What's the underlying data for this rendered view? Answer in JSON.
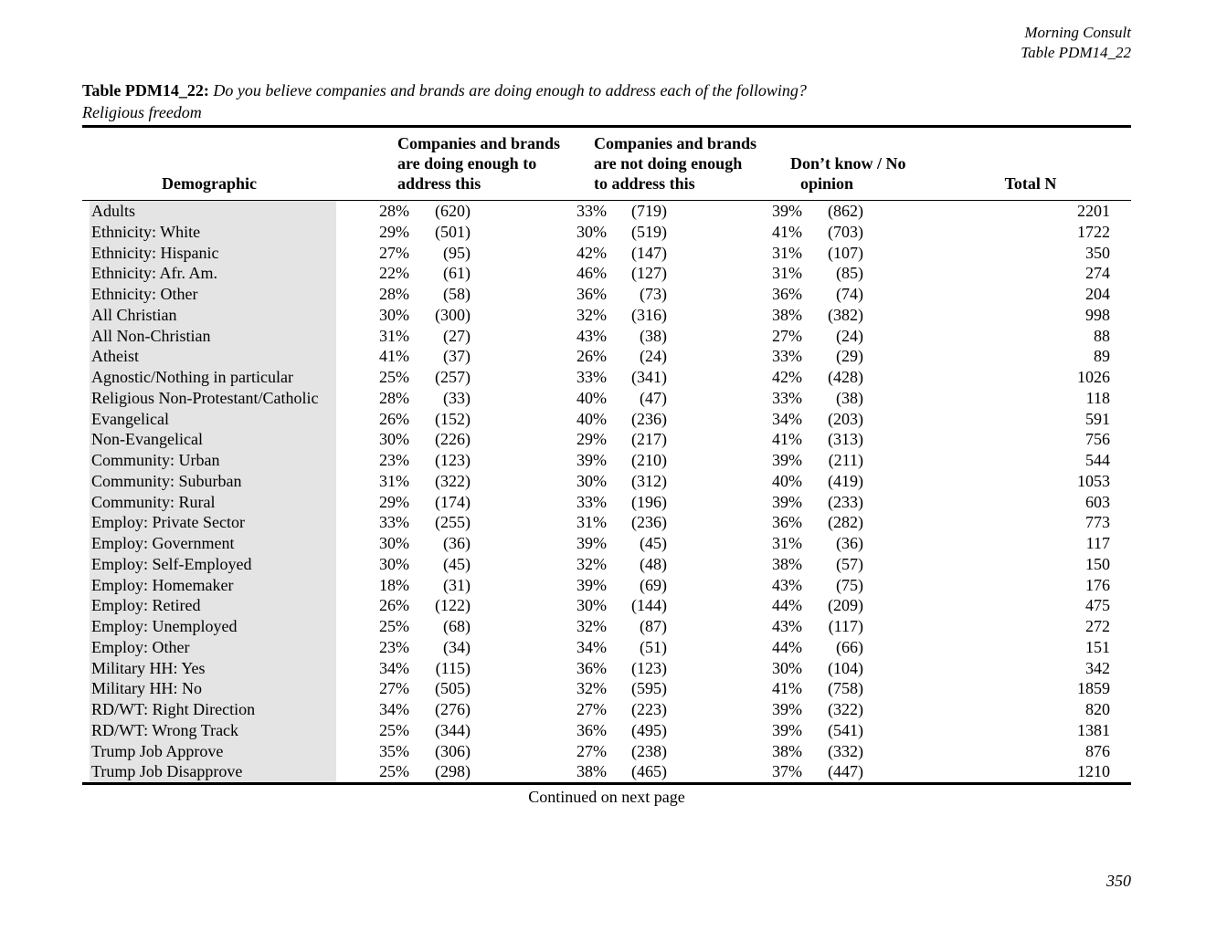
{
  "page_header": {
    "source": "Morning Consult",
    "table_ref": "Table PDM14_22"
  },
  "title": {
    "label": "Table PDM14_22:",
    "question": "Do you believe companies and brands are doing enough to address each of the following?",
    "subtitle": "Religious freedom"
  },
  "colors": {
    "shade": "#e4e4e4",
    "text": "#000000",
    "rule": "#000000"
  },
  "table": {
    "col_headers": {
      "demographic": "Demographic",
      "group1": [
        "Companies and brands",
        "are doing enough to",
        "address this"
      ],
      "group2": [
        "Companies and brands",
        "are not doing enough",
        "to address this"
      ],
      "group3": [
        "Don’t know / No",
        "opinion"
      ],
      "total": "Total N"
    },
    "cell_keys": [
      "demographic",
      "pct1",
      "n1",
      "pct2",
      "n2",
      "pct3",
      "n3",
      "total"
    ],
    "rows": [
      [
        "Adults",
        "28%",
        "(620)",
        "33%",
        "(719)",
        "39%",
        "(862)",
        "2201"
      ],
      [
        "Ethnicity: White",
        "29%",
        "(501)",
        "30%",
        "(519)",
        "41%",
        "(703)",
        "1722"
      ],
      [
        "Ethnicity: Hispanic",
        "27%",
        "(95)",
        "42%",
        "(147)",
        "31%",
        "(107)",
        "350"
      ],
      [
        "Ethnicity: Afr. Am.",
        "22%",
        "(61)",
        "46%",
        "(127)",
        "31%",
        "(85)",
        "274"
      ],
      [
        "Ethnicity: Other",
        "28%",
        "(58)",
        "36%",
        "(73)",
        "36%",
        "(74)",
        "204"
      ],
      [
        "All Christian",
        "30%",
        "(300)",
        "32%",
        "(316)",
        "38%",
        "(382)",
        "998"
      ],
      [
        "All Non-Christian",
        "31%",
        "(27)",
        "43%",
        "(38)",
        "27%",
        "(24)",
        "88"
      ],
      [
        "Atheist",
        "41%",
        "(37)",
        "26%",
        "(24)",
        "33%",
        "(29)",
        "89"
      ],
      [
        "Agnostic/Nothing in particular",
        "25%",
        "(257)",
        "33%",
        "(341)",
        "42%",
        "(428)",
        "1026"
      ],
      [
        "Religious Non-Protestant/Catholic",
        "28%",
        "(33)",
        "40%",
        "(47)",
        "33%",
        "(38)",
        "118"
      ],
      [
        "Evangelical",
        "26%",
        "(152)",
        "40%",
        "(236)",
        "34%",
        "(203)",
        "591"
      ],
      [
        "Non-Evangelical",
        "30%",
        "(226)",
        "29%",
        "(217)",
        "41%",
        "(313)",
        "756"
      ],
      [
        "Community: Urban",
        "23%",
        "(123)",
        "39%",
        "(210)",
        "39%",
        "(211)",
        "544"
      ],
      [
        "Community: Suburban",
        "31%",
        "(322)",
        "30%",
        "(312)",
        "40%",
        "(419)",
        "1053"
      ],
      [
        "Community: Rural",
        "29%",
        "(174)",
        "33%",
        "(196)",
        "39%",
        "(233)",
        "603"
      ],
      [
        "Employ: Private Sector",
        "33%",
        "(255)",
        "31%",
        "(236)",
        "36%",
        "(282)",
        "773"
      ],
      [
        "Employ: Government",
        "30%",
        "(36)",
        "39%",
        "(45)",
        "31%",
        "(36)",
        "117"
      ],
      [
        "Employ: Self-Employed",
        "30%",
        "(45)",
        "32%",
        "(48)",
        "38%",
        "(57)",
        "150"
      ],
      [
        "Employ: Homemaker",
        "18%",
        "(31)",
        "39%",
        "(69)",
        "43%",
        "(75)",
        "176"
      ],
      [
        "Employ: Retired",
        "26%",
        "(122)",
        "30%",
        "(144)",
        "44%",
        "(209)",
        "475"
      ],
      [
        "Employ: Unemployed",
        "25%",
        "(68)",
        "32%",
        "(87)",
        "43%",
        "(117)",
        "272"
      ],
      [
        "Employ: Other",
        "23%",
        "(34)",
        "34%",
        "(51)",
        "44%",
        "(66)",
        "151"
      ],
      [
        "Military HH: Yes",
        "34%",
        "(115)",
        "36%",
        "(123)",
        "30%",
        "(104)",
        "342"
      ],
      [
        "Military HH: No",
        "27%",
        "(505)",
        "32%",
        "(595)",
        "41%",
        "(758)",
        "1859"
      ],
      [
        "RD/WT: Right Direction",
        "34%",
        "(276)",
        "27%",
        "(223)",
        "39%",
        "(322)",
        "820"
      ],
      [
        "RD/WT: Wrong Track",
        "25%",
        "(344)",
        "36%",
        "(495)",
        "39%",
        "(541)",
        "1381"
      ],
      [
        "Trump Job Approve",
        "35%",
        "(306)",
        "27%",
        "(238)",
        "38%",
        "(332)",
        "876"
      ],
      [
        "Trump Job Disapprove",
        "25%",
        "(298)",
        "38%",
        "(465)",
        "37%",
        "(447)",
        "1210"
      ]
    ]
  },
  "footer": {
    "continued": "Continued on next page",
    "page_number": "350"
  }
}
